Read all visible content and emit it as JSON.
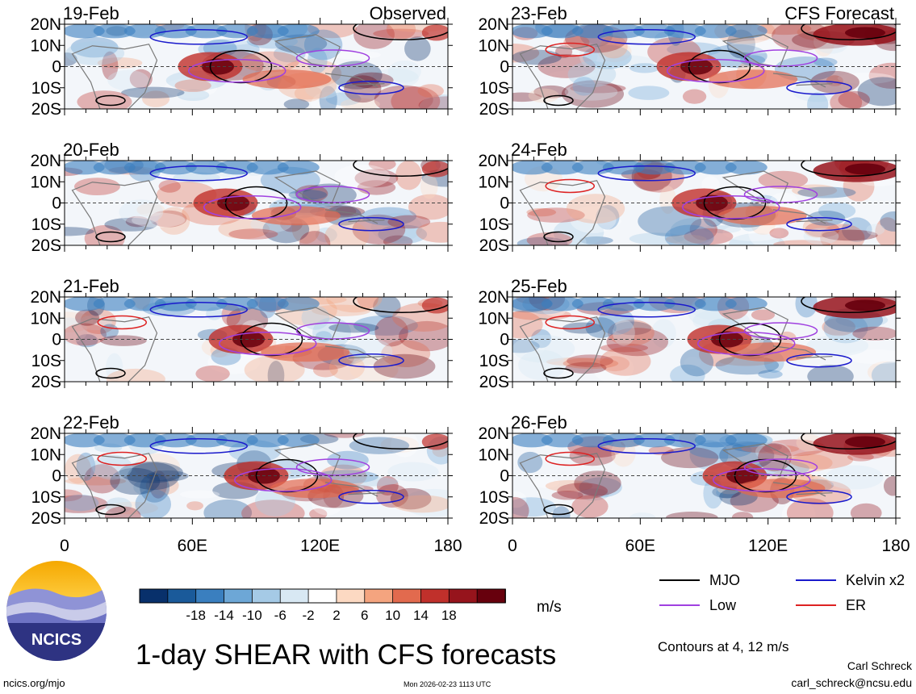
{
  "chart_data": {
    "type": "heatmap",
    "title": "1-day SHEAR with CFS forecasts",
    "lat_labels": [
      "20N",
      "10N",
      "0",
      "10S",
      "20S"
    ],
    "lon_labels": [
      "0",
      "60E",
      "120E",
      "180"
    ],
    "lon_range": [
      0,
      180
    ],
    "lat_range": [
      -20,
      20
    ],
    "panels": [
      {
        "date": "19-Feb",
        "tag": "Observed",
        "column": "left"
      },
      {
        "date": "20-Feb",
        "tag": "",
        "column": "left"
      },
      {
        "date": "21-Feb",
        "tag": "",
        "column": "left"
      },
      {
        "date": "22-Feb",
        "tag": "",
        "column": "left"
      },
      {
        "date": "23-Feb",
        "tag": "CFS Forecast",
        "column": "right"
      },
      {
        "date": "24-Feb",
        "tag": "",
        "column": "right"
      },
      {
        "date": "25-Feb",
        "tag": "",
        "column": "right"
      },
      {
        "date": "26-Feb",
        "tag": "",
        "column": "right"
      }
    ],
    "colorbar": {
      "units": "m/s",
      "ticks": [
        "-18",
        "-14",
        "-10",
        "-6",
        "-2",
        "2",
        "6",
        "10",
        "14",
        "18"
      ],
      "colors": [
        "#08306b",
        "#1a5a9a",
        "#3a7fbf",
        "#6da7d6",
        "#a5cae6",
        "#d8e8f3",
        "#ffffff",
        "#fcd9c2",
        "#f4a47f",
        "#e26a4e",
        "#c0302b",
        "#96141c",
        "#67000d"
      ]
    },
    "legend": [
      {
        "label": "MJO",
        "color": "#000000"
      },
      {
        "label": "Kelvin x2",
        "color": "#1a1acc"
      },
      {
        "label": "Low",
        "color": "#a040e0"
      },
      {
        "label": "ER",
        "color": "#dd2222"
      }
    ],
    "contour_note": "Contours at 4, 12 m/s"
  },
  "footer": {
    "url": "ncics.org/mjo",
    "timestamp": "Mon 2026-02-23 1113 UTC",
    "author": "Carl Schreck",
    "email": "carl_schreck@ncsu.edu",
    "logo_text": "NCICS"
  }
}
